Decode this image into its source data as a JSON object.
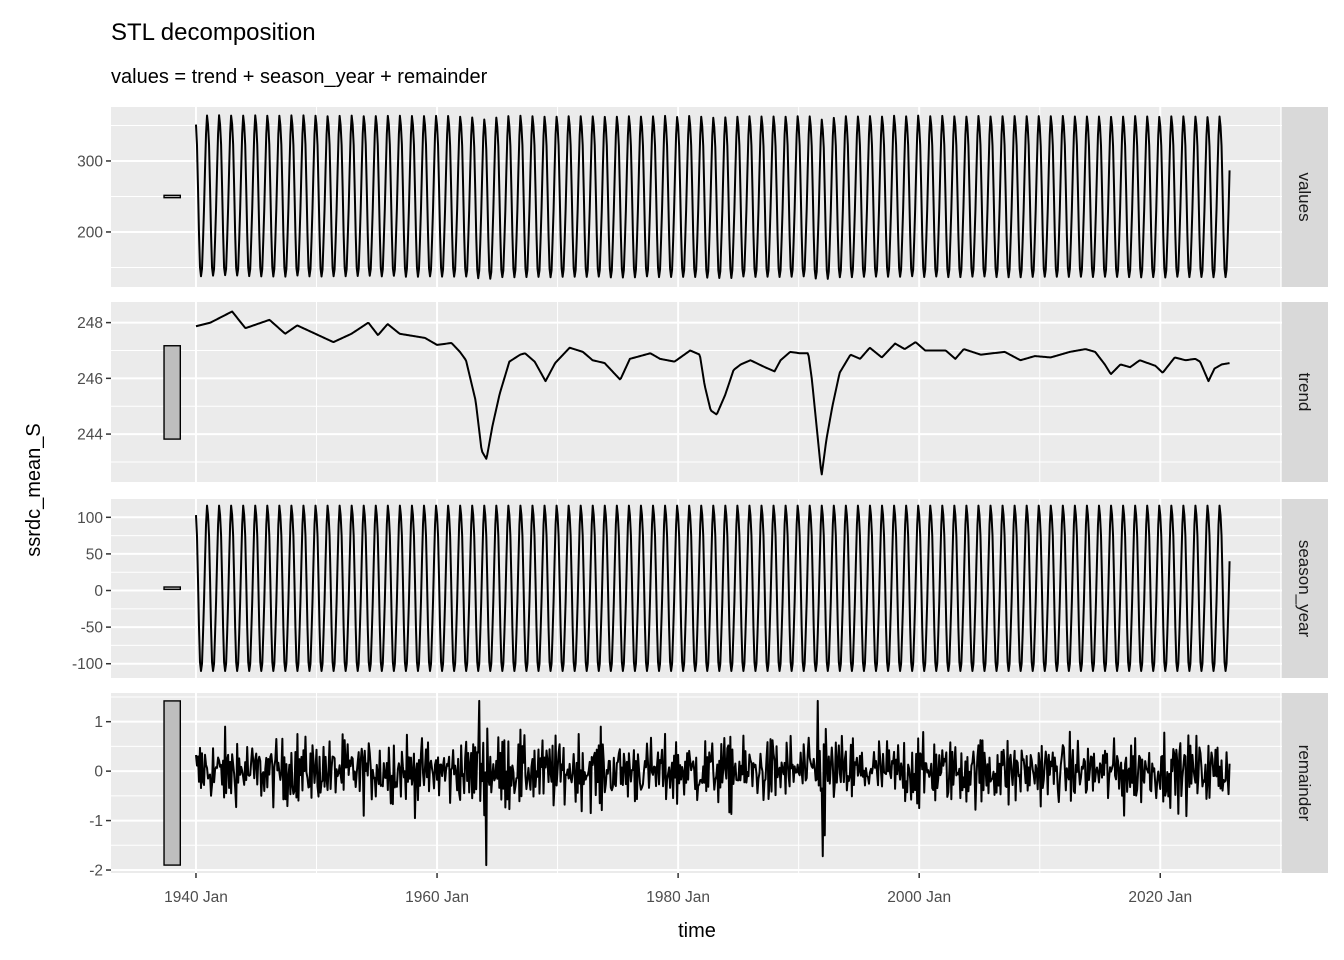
{
  "chart_data": {
    "type": "line",
    "title": "STL decomposition",
    "subtitle": "values = trend + season_year + remainder",
    "xlabel": "time",
    "ylabel": "ssrdc_mean_S",
    "xlim": [
      1932.95,
      2030.1
    ],
    "xticks": [
      {
        "value": 1940,
        "label": "1940 Jan"
      },
      {
        "value": 1960,
        "label": "1960 Jan"
      },
      {
        "value": 1980,
        "label": "1980 Jan"
      },
      {
        "value": 2000,
        "label": "2000 Jan"
      },
      {
        "value": 2020,
        "label": "2020 Jan"
      }
    ],
    "xminor": [
      1930,
      1950,
      1970,
      1990,
      2010,
      2030
    ],
    "start": 1940,
    "n_months": 1030,
    "season_monthly": [
      103,
      75,
      15,
      -50,
      -98,
      -110,
      -100,
      -60,
      -15,
      40,
      90,
      116
    ],
    "trend_keypoints": [
      [
        1940.0,
        247.87
      ],
      [
        1941.2,
        248.0
      ],
      [
        1943.0,
        248.4
      ],
      [
        1944.1,
        247.8
      ],
      [
        1946.1,
        248.1
      ],
      [
        1947.4,
        247.6
      ],
      [
        1948.4,
        247.9
      ],
      [
        1949.9,
        247.6
      ],
      [
        1951.4,
        247.3
      ],
      [
        1952.9,
        247.6
      ],
      [
        1954.3,
        248.0
      ],
      [
        1955.1,
        247.55
      ],
      [
        1955.9,
        247.95
      ],
      [
        1956.9,
        247.6
      ],
      [
        1959.0,
        247.45
      ],
      [
        1960.0,
        247.2
      ],
      [
        1961.2,
        247.27
      ],
      [
        1961.9,
        246.95
      ],
      [
        1962.4,
        246.65
      ],
      [
        1963.2,
        245.2
      ],
      [
        1963.7,
        243.4
      ],
      [
        1964.1,
        243.1
      ],
      [
        1964.6,
        244.3
      ],
      [
        1965.2,
        245.45
      ],
      [
        1966.0,
        246.6
      ],
      [
        1966.9,
        246.85
      ],
      [
        1967.3,
        246.9
      ],
      [
        1968.1,
        246.6
      ],
      [
        1969.0,
        245.9
      ],
      [
        1969.8,
        246.55
      ],
      [
        1971.0,
        247.1
      ],
      [
        1972.1,
        246.95
      ],
      [
        1972.9,
        246.65
      ],
      [
        1973.9,
        246.55
      ],
      [
        1975.2,
        245.95
      ],
      [
        1976.0,
        246.7
      ],
      [
        1977.7,
        246.9
      ],
      [
        1978.5,
        246.7
      ],
      [
        1979.7,
        246.6
      ],
      [
        1981.0,
        247.0
      ],
      [
        1981.8,
        246.85
      ],
      [
        1982.2,
        245.75
      ],
      [
        1982.7,
        244.85
      ],
      [
        1983.2,
        244.7
      ],
      [
        1983.9,
        245.4
      ],
      [
        1984.6,
        246.3
      ],
      [
        1985.2,
        246.5
      ],
      [
        1986.0,
        246.65
      ],
      [
        1987.2,
        246.4
      ],
      [
        1988.0,
        246.25
      ],
      [
        1988.5,
        246.65
      ],
      [
        1989.3,
        246.95
      ],
      [
        1990.1,
        246.9
      ],
      [
        1990.8,
        246.9
      ],
      [
        1991.1,
        245.95
      ],
      [
        1991.6,
        243.8
      ],
      [
        1991.9,
        242.5
      ],
      [
        1992.3,
        243.8
      ],
      [
        1992.8,
        245.0
      ],
      [
        1993.4,
        246.2
      ],
      [
        1994.3,
        246.85
      ],
      [
        1995.1,
        246.7
      ],
      [
        1995.9,
        247.1
      ],
      [
        1996.9,
        246.75
      ],
      [
        1998.0,
        247.25
      ],
      [
        1998.8,
        247.05
      ],
      [
        1999.7,
        247.3
      ],
      [
        2000.5,
        247.0
      ],
      [
        2002.2,
        247.0
      ],
      [
        2003.0,
        246.7
      ],
      [
        2003.7,
        247.05
      ],
      [
        2005.1,
        246.85
      ],
      [
        2007.1,
        246.95
      ],
      [
        2008.4,
        246.65
      ],
      [
        2009.6,
        246.8
      ],
      [
        2010.9,
        246.75
      ],
      [
        2012.5,
        246.95
      ],
      [
        2013.8,
        247.05
      ],
      [
        2014.6,
        246.95
      ],
      [
        2015.4,
        246.5
      ],
      [
        2015.9,
        246.15
      ],
      [
        2016.7,
        246.5
      ],
      [
        2017.5,
        246.4
      ],
      [
        2018.3,
        246.65
      ],
      [
        2019.6,
        246.45
      ],
      [
        2020.2,
        246.2
      ],
      [
        2021.2,
        246.75
      ],
      [
        2022.1,
        246.65
      ],
      [
        2022.9,
        246.7
      ],
      [
        2023.3,
        246.6
      ],
      [
        2024.0,
        245.9
      ],
      [
        2024.5,
        246.35
      ],
      [
        2025.1,
        246.5
      ],
      [
        2025.8,
        246.55
      ]
    ],
    "remainder_noise_sd": 0.32,
    "remainder_spikes": [
      [
        1963.5,
        1.42
      ],
      [
        1964.1,
        -1.9
      ],
      [
        1991.6,
        1.42
      ],
      [
        1992.0,
        -1.72
      ],
      [
        1992.2,
        -1.3
      ],
      [
        2017.0,
        -0.9
      ]
    ],
    "scale_bar_x": [
      1937.35,
      1938.7
    ],
    "panels": [
      {
        "key": "values",
        "label": "values",
        "ylim": [
          122.5,
          376
        ],
        "yticks": [
          {
            "value": 200,
            "label": "200"
          },
          {
            "value": 300,
            "label": "300"
          }
        ],
        "yminor": [
          150,
          250,
          350
        ],
        "scale_bar": [
          248.3,
          251.6
        ]
      },
      {
        "key": "trend",
        "label": "trend",
        "ylim": [
          242.28,
          248.74
        ],
        "yticks": [
          {
            "value": 244,
            "label": "244"
          },
          {
            "value": 246,
            "label": "246"
          },
          {
            "value": 248,
            "label": "248"
          }
        ],
        "yminor": [
          243,
          245,
          247
        ],
        "scale_bar": [
          243.82,
          247.17
        ]
      },
      {
        "key": "season",
        "label": "season_year",
        "ylim": [
          -119.5,
          125
        ],
        "yticks": [
          {
            "value": -100,
            "label": "-100"
          },
          {
            "value": -50,
            "label": "-50"
          },
          {
            "value": 0,
            "label": "0"
          },
          {
            "value": 50,
            "label": "50"
          },
          {
            "value": 100,
            "label": "100"
          }
        ],
        "yminor": [
          -75,
          -25,
          25,
          75
        ],
        "scale_bar": [
          1.5,
          4.8
        ]
      },
      {
        "key": "remainder",
        "label": "remainder",
        "ylim": [
          -2.06,
          1.58
        ],
        "yticks": [
          {
            "value": -2,
            "label": "-2"
          },
          {
            "value": -1,
            "label": "-1"
          },
          {
            "value": 0,
            "label": "0"
          },
          {
            "value": 1,
            "label": "1"
          }
        ],
        "yminor": [
          -1.5,
          -0.5,
          0.5,
          1.5
        ],
        "scale_bar": [
          -1.9,
          1.42
        ]
      }
    ],
    "colors": {
      "panel_bg": "#EBEBEB",
      "grid": "#FFFFFF",
      "strip_bg": "#D9D9D9",
      "line": "#000000",
      "bar_fill": "#BEBEBE"
    }
  }
}
